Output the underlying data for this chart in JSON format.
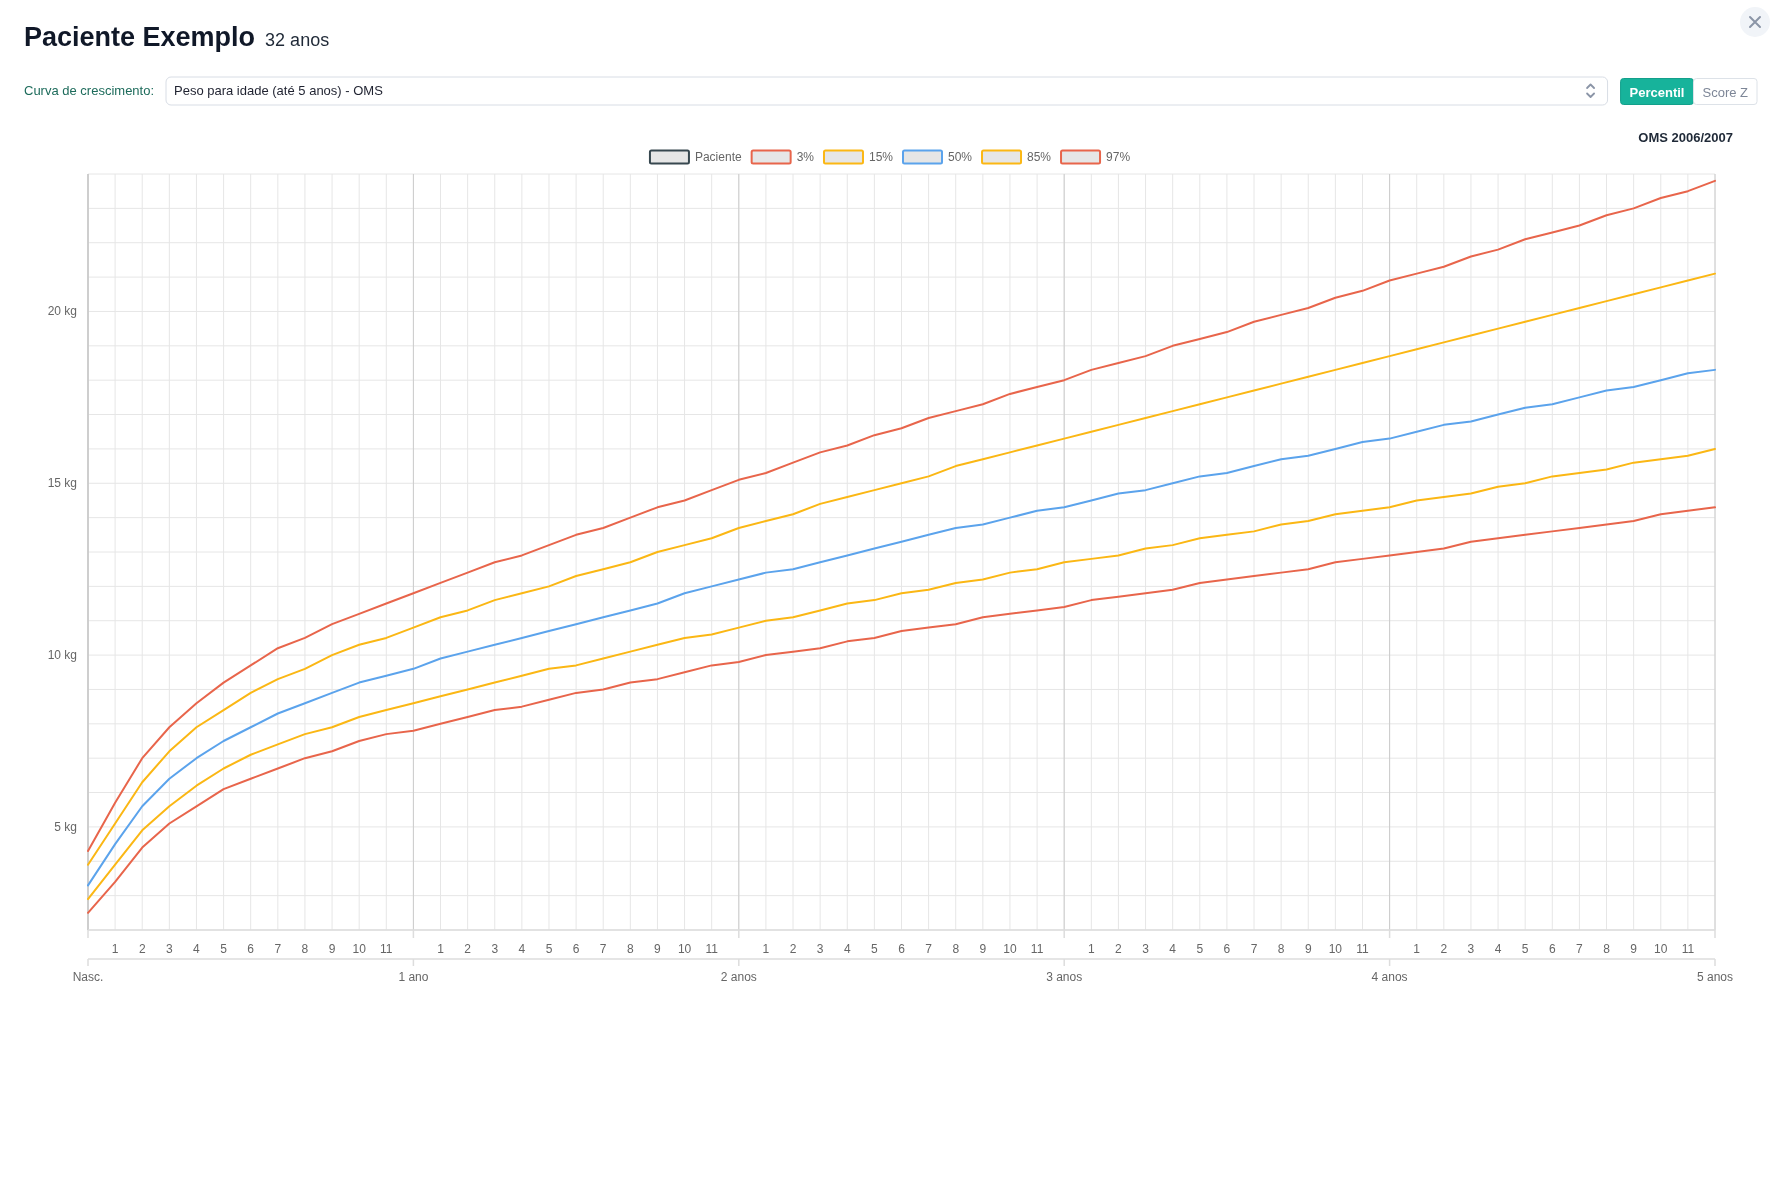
{
  "chart_data": {
    "type": "line",
    "title": "Paciente Exemplo",
    "subtitle": "32 anos",
    "annotations": [
      "Curva de crescimento:",
      "Peso para idade (até 5 anos) - OMS",
      "Percentil",
      "Score Z",
      "OMS 2006/2007"
    ],
    "categories": [
      null,
      "1",
      "2",
      "3",
      "4",
      "5",
      "6",
      "7",
      "8",
      "9",
      "10",
      "11",
      null,
      "1",
      "2",
      "3",
      "4",
      "5",
      "6",
      "7",
      "8",
      "9",
      "10",
      "11",
      null,
      "1",
      "2",
      "3",
      "4",
      "5",
      "6",
      "7",
      "8",
      "9",
      "10",
      "11",
      null,
      "1",
      "2",
      "3",
      "4",
      "5",
      "6",
      "7",
      "8",
      "9",
      "10",
      "11",
      null,
      "1",
      "2",
      "3",
      "4",
      "5",
      "6",
      "7",
      "8",
      "9",
      "10",
      "11",
      null
    ],
    "x2lim": [
      0,
      5
    ],
    "x2ticks": [
      {
        "value": 0,
        "label": "Nasc."
      },
      {
        "value": 1,
        "label": "1 ano"
      },
      {
        "value": 2,
        "label": "2 anos"
      },
      {
        "value": 3,
        "label": "3 anos"
      },
      {
        "value": 4,
        "label": "4 anos"
      },
      {
        "value": 5,
        "label": "5 anos"
      }
    ],
    "ylim": [
      2,
      24
    ],
    "yticks": [
      {
        "value": 2,
        "label": null
      },
      {
        "value": 3,
        "label": null
      },
      {
        "value": 4,
        "label": null
      },
      {
        "value": 5,
        "label": "5 kg"
      },
      {
        "value": 6,
        "label": null
      },
      {
        "value": 7,
        "label": null
      },
      {
        "value": 8,
        "label": null
      },
      {
        "value": 9,
        "label": null
      },
      {
        "value": 10,
        "label": "10 kg"
      },
      {
        "value": 11,
        "label": null
      },
      {
        "value": 12,
        "label": null
      },
      {
        "value": 13,
        "label": null
      },
      {
        "value": 14,
        "label": null
      },
      {
        "value": 15,
        "label": "15 kg"
      },
      {
        "value": 16,
        "label": null
      },
      {
        "value": 17,
        "label": null
      },
      {
        "value": 18,
        "label": null
      },
      {
        "value": 19,
        "label": null
      },
      {
        "value": 20,
        "label": "20 kg"
      },
      {
        "value": 21,
        "label": null
      },
      {
        "value": 22,
        "label": null
      },
      {
        "value": 23,
        "label": null
      },
      {
        "value": 24,
        "label": null
      }
    ],
    "grid": true,
    "legend": "top",
    "series": [
      {
        "name": "Paciente",
        "color": "#37474f",
        "values": [
          null,
          null,
          null,
          null,
          null,
          null,
          null,
          null,
          null,
          null,
          null,
          null,
          null,
          null,
          null,
          null,
          null,
          null,
          null,
          null,
          null,
          null,
          null,
          null,
          null,
          null,
          null,
          null,
          null,
          null,
          null,
          null,
          null,
          null,
          null,
          null,
          null,
          null,
          null,
          null,
          null,
          null,
          null,
          null,
          null,
          null,
          null,
          null,
          null,
          null,
          null,
          null,
          null,
          null,
          null,
          null,
          null,
          null,
          null,
          null,
          null
        ]
      },
      {
        "name": "3%",
        "color": "#e8654b",
        "values": [
          2.5,
          3.4,
          4.4,
          5.1,
          5.6,
          6.1,
          6.4,
          6.7,
          7.0,
          7.2,
          7.5,
          7.7,
          7.8,
          8.0,
          8.2,
          8.4,
          8.5,
          8.7,
          8.9,
          9.0,
          9.2,
          9.3,
          9.5,
          9.7,
          9.8,
          10.0,
          10.1,
          10.2,
          10.4,
          10.5,
          10.7,
          10.8,
          10.9,
          11.1,
          11.2,
          11.3,
          11.4,
          11.6,
          11.7,
          11.8,
          11.9,
          12.1,
          12.2,
          12.3,
          12.4,
          12.5,
          12.7,
          12.8,
          12.9,
          13.0,
          13.1,
          13.3,
          13.4,
          13.5,
          13.6,
          13.7,
          13.8,
          13.9,
          14.1,
          14.2,
          14.3
        ]
      },
      {
        "name": "15%",
        "color": "#fbb714",
        "values": [
          2.9,
          3.9,
          4.9,
          5.6,
          6.2,
          6.7,
          7.1,
          7.4,
          7.7,
          7.9,
          8.2,
          8.4,
          8.6,
          8.8,
          9.0,
          9.2,
          9.4,
          9.6,
          9.7,
          9.9,
          10.1,
          10.3,
          10.5,
          10.6,
          10.8,
          11.0,
          11.1,
          11.3,
          11.5,
          11.6,
          11.8,
          11.9,
          12.1,
          12.2,
          12.4,
          12.5,
          12.7,
          12.8,
          12.9,
          13.1,
          13.2,
          13.4,
          13.5,
          13.6,
          13.8,
          13.9,
          14.1,
          14.2,
          14.3,
          14.5,
          14.6,
          14.7,
          14.9,
          15.0,
          15.2,
          15.3,
          15.4,
          15.6,
          15.7,
          15.8,
          16.0
        ]
      },
      {
        "name": "50%",
        "color": "#5ba3ec",
        "values": [
          3.3,
          4.5,
          5.6,
          6.4,
          7.0,
          7.5,
          7.9,
          8.3,
          8.6,
          8.9,
          9.2,
          9.4,
          9.6,
          9.9,
          10.1,
          10.3,
          10.5,
          10.7,
          10.9,
          11.1,
          11.3,
          11.5,
          11.8,
          12.0,
          12.2,
          12.4,
          12.5,
          12.7,
          12.9,
          13.1,
          13.3,
          13.5,
          13.7,
          13.8,
          14.0,
          14.2,
          14.3,
          14.5,
          14.7,
          14.8,
          15.0,
          15.2,
          15.3,
          15.5,
          15.7,
          15.8,
          16.0,
          16.2,
          16.3,
          16.5,
          16.7,
          16.8,
          17.0,
          17.2,
          17.3,
          17.5,
          17.7,
          17.8,
          18.0,
          18.2,
          18.3
        ]
      },
      {
        "name": "85%",
        "color": "#fbb714",
        "values": [
          3.9,
          5.1,
          6.3,
          7.2,
          7.9,
          8.4,
          8.9,
          9.3,
          9.6,
          10.0,
          10.3,
          10.5,
          10.8,
          11.1,
          11.3,
          11.6,
          11.8,
          12.0,
          12.3,
          12.5,
          12.7,
          13.0,
          13.2,
          13.4,
          13.7,
          13.9,
          14.1,
          14.4,
          14.6,
          14.8,
          15.0,
          15.2,
          15.5,
          15.7,
          15.9,
          16.1,
          16.3,
          16.5,
          16.7,
          16.9,
          17.1,
          17.3,
          17.5,
          17.7,
          17.9,
          18.1,
          18.3,
          18.5,
          18.7,
          18.9,
          19.1,
          19.3,
          19.5,
          19.7,
          19.9,
          20.1,
          20.3,
          20.5,
          20.7,
          20.9,
          21.1
        ]
      },
      {
        "name": "97%",
        "color": "#e8654b",
        "values": [
          4.3,
          5.7,
          7.0,
          7.9,
          8.6,
          9.2,
          9.7,
          10.2,
          10.5,
          10.9,
          11.2,
          11.5,
          11.8,
          12.1,
          12.4,
          12.7,
          12.9,
          13.2,
          13.5,
          13.7,
          14.0,
          14.3,
          14.5,
          14.8,
          15.1,
          15.3,
          15.6,
          15.9,
          16.1,
          16.4,
          16.6,
          16.9,
          17.1,
          17.3,
          17.6,
          17.8,
          18.0,
          18.3,
          18.5,
          18.7,
          19.0,
          19.2,
          19.4,
          19.7,
          19.9,
          20.1,
          20.4,
          20.6,
          20.9,
          21.1,
          21.3,
          21.6,
          21.8,
          22.1,
          22.3,
          22.5,
          22.8,
          23.0,
          23.3,
          23.5,
          23.8
        ]
      }
    ]
  }
}
